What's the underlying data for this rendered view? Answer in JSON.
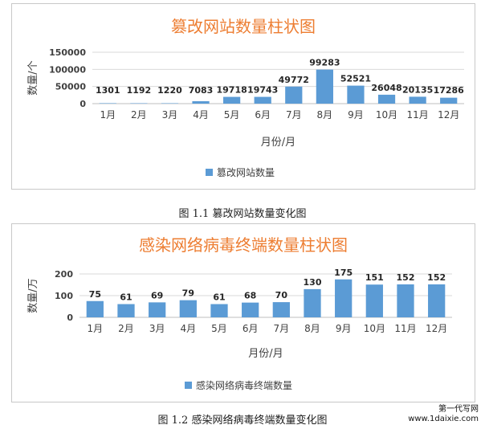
{
  "chart_data": [
    {
      "type": "bar",
      "title": "篡改网站数量柱状图",
      "xlabel": "月份/月",
      "ylabel": "数量/个",
      "categories": [
        "1月",
        "2月",
        "3月",
        "4月",
        "5月",
        "6月",
        "7月",
        "8月",
        "9月",
        "10月",
        "11月",
        "12月"
      ],
      "series": [
        {
          "name": "篡改网站数量",
          "values": [
            1301,
            1192,
            1220,
            7083,
            19718,
            19743,
            49772,
            99283,
            52521,
            26048,
            20135,
            17286
          ]
        }
      ],
      "ylim": [
        0,
        150000
      ],
      "yticks": [
        "0",
        "50000",
        "100000",
        "150000"
      ],
      "grid": true,
      "legend": "bottom",
      "color": "#5b9bd5",
      "title_color": "#ed7d31"
    },
    {
      "type": "bar",
      "title": "感染网络病毒终端数量柱状图",
      "xlabel": "月份/月",
      "ylabel": "数量/万",
      "categories": [
        "1月",
        "2月",
        "3月",
        "4月",
        "5月",
        "6月",
        "7月",
        "8月",
        "9月",
        "10月",
        "11月",
        "12月"
      ],
      "series": [
        {
          "name": "感染网络病毒终端数量",
          "values": [
            75,
            61,
            69,
            79,
            61,
            68,
            70,
            130,
            175,
            151,
            152,
            152
          ]
        }
      ],
      "ylim": [
        0,
        200
      ],
      "yticks": [
        "0",
        "100",
        "200"
      ],
      "grid": true,
      "legend": "bottom",
      "color": "#5b9bd5",
      "title_color": "#ed7d31"
    }
  ],
  "captions": {
    "fig1": "图 1.1    篡改网站数量变化图",
    "fig2": "图 1.2    感染网络病毒终端数量变化图"
  },
  "watermark": {
    "line1": "第一代写网",
    "line2": "www.1daixie.com"
  }
}
